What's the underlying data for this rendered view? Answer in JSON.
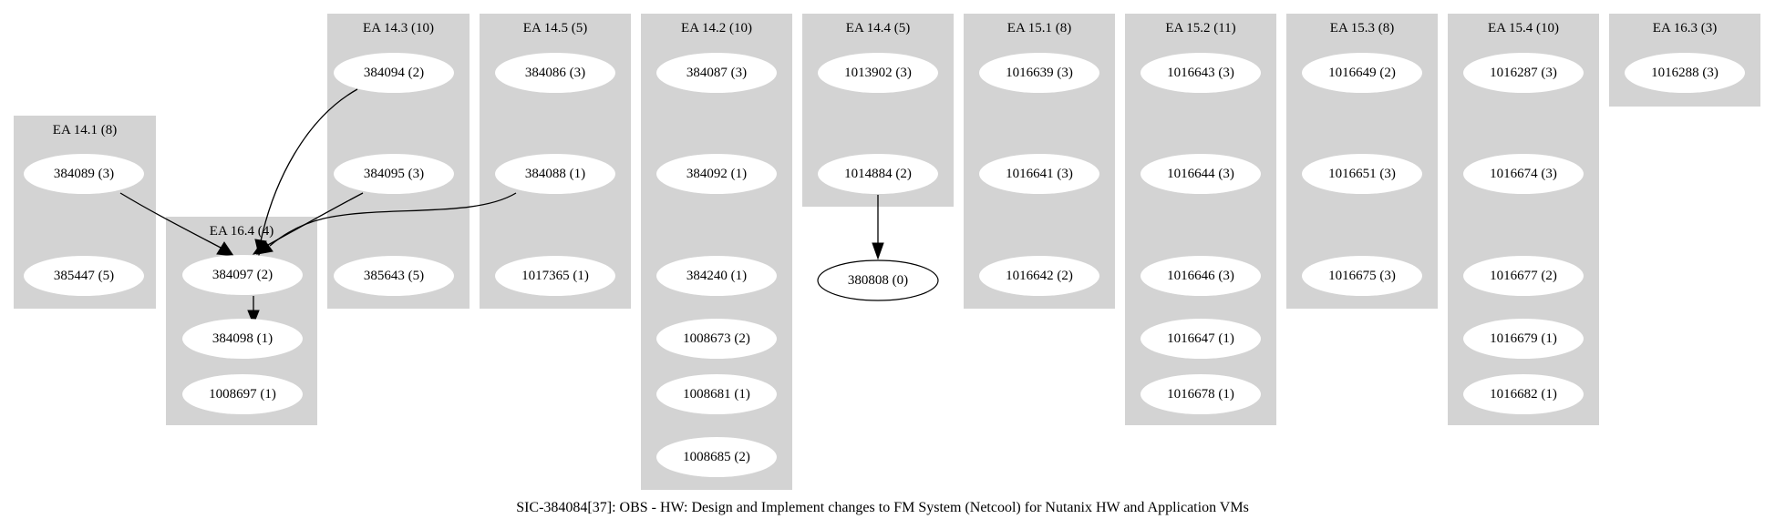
{
  "graph": {
    "title": "SIC-384084[37]: OBS - HW: Design and Implement changes to FM System (Netcool) for Nutanix HW and Application VMs"
  },
  "colors": {
    "cluster_fill": "#d3d3d3",
    "node_fill": "#ffffff",
    "edge": "#000000",
    "background": "#ffffff"
  },
  "clusters": [
    {
      "id": "ea141",
      "title": "EA 14.1 (8)",
      "nodes": [
        {
          "id": "n384089",
          "label": "384089 (3)"
        },
        {
          "id": "n385447",
          "label": "385447 (5)"
        }
      ]
    },
    {
      "id": "ea164",
      "title": "EA 16.4 (4)",
      "nodes": [
        {
          "id": "n384097",
          "label": "384097 (2)"
        },
        {
          "id": "n384098",
          "label": "384098 (1)"
        },
        {
          "id": "n1008697",
          "label": "1008697 (1)"
        }
      ]
    },
    {
      "id": "ea143",
      "title": "EA 14.3 (10)",
      "nodes": [
        {
          "id": "n384094",
          "label": "384094 (2)"
        },
        {
          "id": "n384095",
          "label": "384095 (3)"
        },
        {
          "id": "n385643",
          "label": "385643 (5)"
        }
      ]
    },
    {
      "id": "ea145",
      "title": "EA 14.5 (5)",
      "nodes": [
        {
          "id": "n384086",
          "label": "384086 (3)"
        },
        {
          "id": "n384088",
          "label": "384088 (1)"
        },
        {
          "id": "n1017365",
          "label": "1017365 (1)"
        }
      ]
    },
    {
      "id": "ea142",
      "title": "EA 14.2 (10)",
      "nodes": [
        {
          "id": "n384087",
          "label": "384087 (3)"
        },
        {
          "id": "n384092",
          "label": "384092 (1)"
        },
        {
          "id": "n384240",
          "label": "384240 (1)"
        },
        {
          "id": "n1008673",
          "label": "1008673 (2)"
        },
        {
          "id": "n1008681",
          "label": "1008681 (1)"
        },
        {
          "id": "n1008685",
          "label": "1008685 (2)"
        }
      ]
    },
    {
      "id": "ea144",
      "title": "EA 14.4 (5)",
      "nodes": [
        {
          "id": "n1013902",
          "label": "1013902 (3)"
        },
        {
          "id": "n1014884",
          "label": "1014884 (2)"
        }
      ]
    },
    {
      "id": "ea151",
      "title": "EA 15.1 (8)",
      "nodes": [
        {
          "id": "n1016639",
          "label": "1016639 (3)"
        },
        {
          "id": "n1016641",
          "label": "1016641 (3)"
        },
        {
          "id": "n1016642",
          "label": "1016642 (2)"
        }
      ]
    },
    {
      "id": "ea152",
      "title": "EA 15.2 (11)",
      "nodes": [
        {
          "id": "n1016643",
          "label": "1016643 (3)"
        },
        {
          "id": "n1016644",
          "label": "1016644 (3)"
        },
        {
          "id": "n1016646",
          "label": "1016646 (3)"
        },
        {
          "id": "n1016647",
          "label": "1016647 (1)"
        },
        {
          "id": "n1016678",
          "label": "1016678 (1)"
        }
      ]
    },
    {
      "id": "ea153",
      "title": "EA 15.3 (8)",
      "nodes": [
        {
          "id": "n1016649",
          "label": "1016649 (2)"
        },
        {
          "id": "n1016651",
          "label": "1016651 (3)"
        },
        {
          "id": "n1016675",
          "label": "1016675 (3)"
        }
      ]
    },
    {
      "id": "ea154",
      "title": "EA 15.4 (10)",
      "nodes": [
        {
          "id": "n1016287",
          "label": "1016287 (3)"
        },
        {
          "id": "n1016674",
          "label": "1016674 (3)"
        },
        {
          "id": "n1016677",
          "label": "1016677 (2)"
        },
        {
          "id": "n1016679",
          "label": "1016679 (1)"
        },
        {
          "id": "n1016682",
          "label": "1016682 (1)"
        }
      ]
    },
    {
      "id": "ea163",
      "title": "EA 16.3 (3)",
      "nodes": [
        {
          "id": "n1016288",
          "label": "1016288 (3)"
        }
      ]
    }
  ],
  "free_nodes": [
    {
      "id": "n380808",
      "label": "380808 (0)"
    }
  ],
  "edges": [
    {
      "id": "e1",
      "from": "n384089",
      "to": "n384097"
    },
    {
      "id": "e2",
      "from": "n384094",
      "to": "n384097"
    },
    {
      "id": "e3",
      "from": "n384095",
      "to": "n384097"
    },
    {
      "id": "e4",
      "from": "n384088",
      "to": "n384097"
    },
    {
      "id": "e5",
      "from": "n384097",
      "to": "n384098"
    },
    {
      "id": "e6",
      "from": "n1014884",
      "to": "n380808"
    }
  ]
}
